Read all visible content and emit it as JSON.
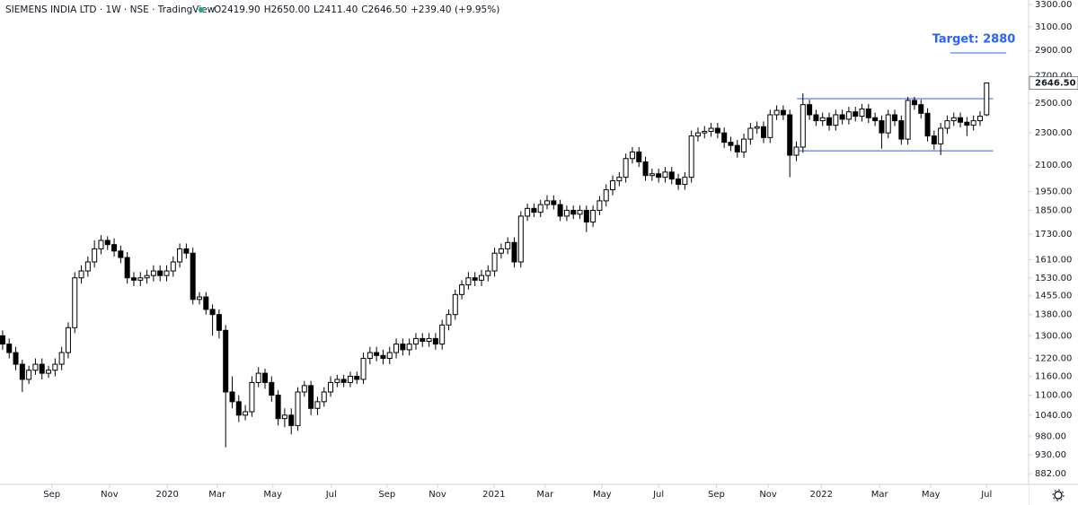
{
  "chart_data": {
    "type": "candlestick",
    "title": "SIEMENS INDIA LTD · 1W · NSE · TradingView",
    "ohlc_header": [
      "O2419.90",
      "H2650.00",
      "L2411.40",
      "C2646.50",
      "+239.40 (+9.95%)"
    ],
    "annotation": "Target: 2880",
    "log_scale": true,
    "up_color": "#ffffff",
    "down_color": "#000000",
    "line_color": "#2962ff",
    "open": [
      1300,
      1270,
      1240,
      1200,
      1150,
      1180,
      1200,
      1170,
      1180,
      1200,
      1240,
      1330,
      1530,
      1560,
      1600,
      1660,
      1700,
      1680,
      1650,
      1620,
      1530,
      1520,
      1530,
      1540,
      1560,
      1540,
      1560,
      1600,
      1660,
      1640,
      1440,
      1450,
      1400,
      1380,
      1320,
      1110,
      1080,
      1040,
      1050,
      1140,
      1170,
      1140,
      1100,
      1030,
      1040,
      1010,
      1110,
      1130,
      1060,
      1080,
      1110,
      1140,
      1150,
      1140,
      1160,
      1150,
      1220,
      1240,
      1230,
      1220,
      1240,
      1270,
      1250,
      1270,
      1290,
      1280,
      1290,
      1270,
      1340,
      1380,
      1460,
      1500,
      1530,
      1520,
      1540,
      1560,
      1640,
      1660,
      1690,
      1600,
      1820,
      1860,
      1840,
      1880,
      1900,
      1880,
      1820,
      1850,
      1830,
      1850,
      1790,
      1850,
      1900,
      1960,
      2010,
      2030,
      2140,
      2180,
      2120,
      2040,
      2050,
      2030,
      2060,
      2020,
      1990,
      2030,
      2280,
      2300,
      2310,
      2330,
      2300,
      2240,
      2220,
      2180,
      2260,
      2330,
      2340,
      2270,
      2420,
      2450,
      2420,
      2160,
      2210,
      2490,
      2420,
      2380,
      2400,
      2350,
      2420,
      2390,
      2440,
      2410,
      2460,
      2400,
      2380,
      2300,
      2420,
      2380,
      2260,
      2520,
      2490,
      2430,
      2280,
      2230,
      2330,
      2380,
      2400,
      2370,
      2350,
      2380,
      2419.9
    ],
    "high": [
      1320,
      1290,
      1260,
      1215,
      1195,
      1220,
      1220,
      1195,
      1220,
      1260,
      1350,
      1555,
      1585,
      1625,
      1700,
      1725,
      1720,
      1710,
      1675,
      1645,
      1555,
      1555,
      1565,
      1585,
      1585,
      1585,
      1625,
      1685,
      1685,
      1665,
      1470,
      1470,
      1420,
      1400,
      1340,
      1160,
      1100,
      1070,
      1160,
      1190,
      1185,
      1160,
      1115,
      1060,
      1060,
      1125,
      1145,
      1145,
      1095,
      1125,
      1160,
      1165,
      1165,
      1175,
      1175,
      1240,
      1260,
      1260,
      1250,
      1260,
      1290,
      1290,
      1290,
      1310,
      1310,
      1310,
      1310,
      1360,
      1400,
      1480,
      1520,
      1555,
      1555,
      1565,
      1585,
      1665,
      1685,
      1715,
      1715,
      1845,
      1885,
      1885,
      1905,
      1930,
      1930,
      1905,
      1875,
      1875,
      1875,
      1875,
      1875,
      1925,
      1990,
      2040,
      2060,
      2170,
      2210,
      2210,
      2150,
      2080,
      2080,
      2090,
      2090,
      2050,
      2060,
      2315,
      2335,
      2345,
      2365,
      2365,
      2335,
      2275,
      2255,
      2295,
      2365,
      2375,
      2375,
      2455,
      2485,
      2485,
      2455,
      2245,
      2570,
      2525,
      2455,
      2435,
      2435,
      2455,
      2455,
      2475,
      2475,
      2495,
      2495,
      2435,
      2415,
      2455,
      2455,
      2415,
      2545,
      2545,
      2525,
      2465,
      2315,
      2365,
      2415,
      2435,
      2435,
      2405,
      2415,
      2445,
      2650
    ],
    "low": [
      1250,
      1220,
      1180,
      1110,
      1135,
      1165,
      1150,
      1155,
      1160,
      1180,
      1220,
      1310,
      1505,
      1535,
      1575,
      1635,
      1655,
      1625,
      1595,
      1505,
      1495,
      1495,
      1505,
      1515,
      1515,
      1515,
      1535,
      1575,
      1615,
      1420,
      1420,
      1380,
      1300,
      1290,
      950,
      1060,
      1020,
      1025,
      1035,
      1125,
      1120,
      1080,
      1010,
      1005,
      985,
      995,
      1095,
      1040,
      1040,
      1065,
      1095,
      1125,
      1125,
      1125,
      1135,
      1135,
      1200,
      1210,
      1200,
      1200,
      1220,
      1230,
      1230,
      1250,
      1260,
      1260,
      1250,
      1250,
      1320,
      1360,
      1440,
      1480,
      1495,
      1495,
      1515,
      1535,
      1615,
      1635,
      1575,
      1575,
      1795,
      1815,
      1815,
      1855,
      1855,
      1795,
      1795,
      1805,
      1805,
      1740,
      1765,
      1825,
      1870,
      1930,
      1980,
      2000,
      2110,
      2090,
      2010,
      2010,
      2000,
      2000,
      1990,
      1960,
      1960,
      2000,
      2245,
      2265,
      2275,
      2265,
      2205,
      2185,
      2145,
      2145,
      2225,
      2295,
      2235,
      2235,
      2385,
      2385,
      2030,
      2125,
      2175,
      2385,
      2345,
      2345,
      2315,
      2315,
      2355,
      2355,
      2375,
      2375,
      2365,
      2345,
      2200,
      2265,
      2345,
      2225,
      2225,
      2455,
      2395,
      2245,
      2195,
      2160,
      2295,
      2345,
      2335,
      2280,
      2315,
      2345,
      2411.4
    ],
    "close": [
      1270,
      1240,
      1200,
      1150,
      1180,
      1200,
      1170,
      1180,
      1200,
      1240,
      1330,
      1530,
      1560,
      1600,
      1660,
      1700,
      1680,
      1650,
      1620,
      1530,
      1520,
      1530,
      1540,
      1560,
      1540,
      1560,
      1600,
      1660,
      1640,
      1440,
      1450,
      1400,
      1380,
      1320,
      1110,
      1080,
      1040,
      1050,
      1140,
      1170,
      1140,
      1100,
      1030,
      1040,
      1010,
      1110,
      1130,
      1060,
      1080,
      1110,
      1140,
      1150,
      1140,
      1160,
      1150,
      1220,
      1240,
      1230,
      1220,
      1240,
      1270,
      1250,
      1270,
      1290,
      1280,
      1290,
      1270,
      1340,
      1380,
      1460,
      1500,
      1530,
      1520,
      1540,
      1560,
      1640,
      1660,
      1690,
      1600,
      1820,
      1860,
      1840,
      1880,
      1900,
      1880,
      1820,
      1850,
      1830,
      1850,
      1790,
      1850,
      1900,
      1960,
      2010,
      2030,
      2140,
      2180,
      2120,
      2040,
      2050,
      2030,
      2060,
      2020,
      1990,
      2030,
      2280,
      2300,
      2310,
      2330,
      2300,
      2240,
      2220,
      2180,
      2260,
      2330,
      2340,
      2270,
      2420,
      2450,
      2420,
      2160,
      2210,
      2490,
      2420,
      2380,
      2400,
      2350,
      2420,
      2390,
      2440,
      2410,
      2460,
      2400,
      2380,
      2300,
      2420,
      2380,
      2260,
      2520,
      2490,
      2430,
      2280,
      2230,
      2330,
      2380,
      2400,
      2370,
      2350,
      2380,
      2410,
      2646.5
    ],
    "last_price": {
      "value": 2646.5,
      "label": "2646.50"
    },
    "hlines": [
      {
        "value": 2532,
        "span": [
          121.1,
          151
        ]
      },
      {
        "value": 2187,
        "span": [
          121.1,
          151
        ]
      },
      {
        "value": 2880,
        "span": [
          144.5,
          153
        ]
      }
    ],
    "xlim": [
      -0.4,
      156.4
    ],
    "ylim": [
      856,
      3342
    ],
    "xticks": [
      {
        "value": 7.5,
        "label": "Sep"
      },
      {
        "value": 16.3,
        "label": "Nov"
      },
      {
        "value": 25.1,
        "label": "2020"
      },
      {
        "value": 32.7,
        "label": "Mar"
      },
      {
        "value": 41.2,
        "label": "May"
      },
      {
        "value": 50.1,
        "label": "Jul"
      },
      {
        "value": 58.6,
        "label": "Sep"
      },
      {
        "value": 66.3,
        "label": "Nov"
      },
      {
        "value": 74.9,
        "label": "2021"
      },
      {
        "value": 82.7,
        "label": "Mar"
      },
      {
        "value": 91.4,
        "label": "May"
      },
      {
        "value": 100,
        "label": "Jul"
      },
      {
        "value": 108.8,
        "label": "Sep"
      },
      {
        "value": 116.7,
        "label": "Nov"
      },
      {
        "value": 124.8,
        "label": "2022"
      },
      {
        "value": 133.7,
        "label": "Mar"
      },
      {
        "value": 141.5,
        "label": "May"
      },
      {
        "value": 150,
        "label": "Jul"
      }
    ],
    "yticks": [
      {
        "value": 882,
        "label": "882.00"
      },
      {
        "value": 930,
        "label": "930.00"
      },
      {
        "value": 980,
        "label": "980.00"
      },
      {
        "value": 1040,
        "label": "1040.00"
      },
      {
        "value": 1100,
        "label": "1100.00"
      },
      {
        "value": 1160,
        "label": "1160.00"
      },
      {
        "value": 1220,
        "label": "1220.00"
      },
      {
        "value": 1300,
        "label": "1300.00"
      },
      {
        "value": 1380,
        "label": "1380.00"
      },
      {
        "value": 1455,
        "label": "1455.00"
      },
      {
        "value": 1530,
        "label": "1530.00"
      },
      {
        "value": 1610,
        "label": "1610.00"
      },
      {
        "value": 1730,
        "label": "1730.00"
      },
      {
        "value": 1850,
        "label": "1850.00"
      },
      {
        "value": 1950,
        "label": "1950.00"
      },
      {
        "value": 2100,
        "label": "2100.00"
      },
      {
        "value": 2300,
        "label": "2300.00"
      },
      {
        "value": 2500,
        "label": "2500.00"
      },
      {
        "value": 2700,
        "label": "2700.00"
      },
      {
        "value": 2900,
        "label": "2900.00"
      },
      {
        "value": 3100,
        "label": "3100.00"
      },
      {
        "value": 3300,
        "label": "3300.00"
      }
    ],
    "grid": false
  }
}
